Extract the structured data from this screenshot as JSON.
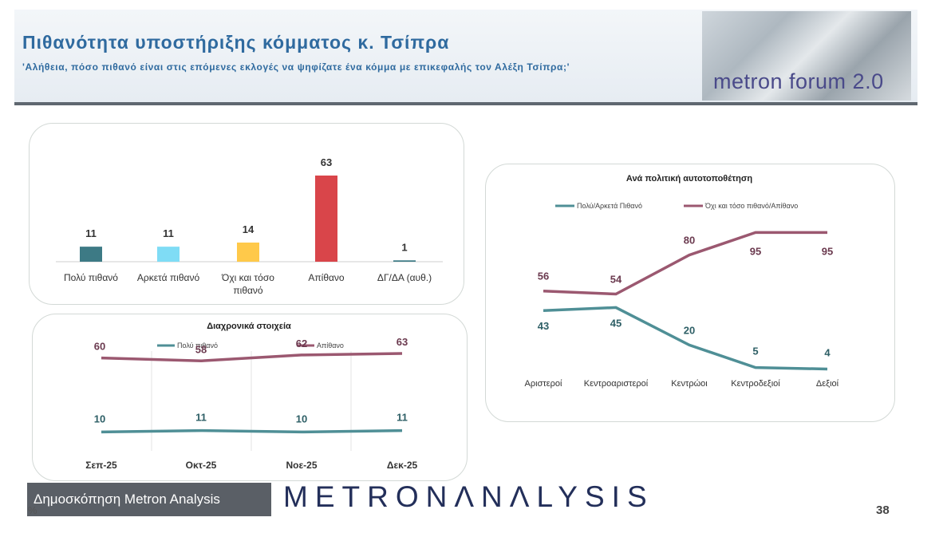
{
  "header": {
    "title": "Πιθανότητα υποστήριξης κόμματος κ. Τσίπρα",
    "subtitle": "'Αλήθεια, πόσο πιθανό είναι στις επόμενες εκλογές να ψηφίζατε ένα κόμμα με επικεφαλής τον Αλέξη Τσίπρα;'",
    "logo_text": "metron forum 2.0"
  },
  "footer": {
    "badge": "Δημοσκόπηση Metron Analysis",
    "brand": "METRONΛNΛLYSIS",
    "page_number": "38",
    "percent_sign": "%"
  },
  "colors": {
    "teal": "#3d7a85",
    "light_blue": "#7fdcf5",
    "yellow": "#ffc94a",
    "red": "#d9454a",
    "maroon": "#9b5870",
    "teal_line": "#4f8f96"
  },
  "chart_data": [
    {
      "type": "bar",
      "title": "",
      "categories": [
        "Πολύ πιθανό",
        "Αρκετά πιθανό",
        "Όχι και τόσο πιθανό",
        "Απίθανο",
        "ΔΓ/ΔΑ (αυθ.)"
      ],
      "category_lines": [
        [
          "Πολύ πιθανό"
        ],
        [
          "Αρκετά πιθανό"
        ],
        [
          "Όχι και τόσο",
          "πιθανό"
        ],
        [
          "Απίθανο"
        ],
        [
          "ΔΓ/ΔΑ (αυθ.)"
        ]
      ],
      "values": [
        11,
        11,
        14,
        63,
        1
      ],
      "bar_colors": [
        "#3d7a85",
        "#7fdcf5",
        "#ffc94a",
        "#d9454a",
        "#3d7a85"
      ],
      "ylim": [
        0,
        63
      ]
    },
    {
      "type": "line",
      "title": "Διαχρονικά στοιχεία",
      "categories": [
        "Σεπ-25",
        "Οκτ-25",
        "Νοε-25",
        "Δεκ-25"
      ],
      "series": [
        {
          "name": "Πολύ πιθανό",
          "values": [
            10,
            11,
            10,
            11
          ],
          "color": "#4f8f96"
        },
        {
          "name": "Απίθανο",
          "values": [
            60,
            58,
            62,
            63
          ],
          "color": "#9b5870"
        }
      ],
      "ylim": [
        0,
        70
      ],
      "legend": "top"
    },
    {
      "type": "line",
      "title": "Ανά πολιτική αυτοτοποθέτηση",
      "categories": [
        "Αριστεροί",
        "Κεντροαριστεροί",
        "Κεντρώοι",
        "Κεντροδεξιοί",
        "Δεξιοί"
      ],
      "series": [
        {
          "name": "Πολύ/Αρκετά Πιθανό",
          "values": [
            43,
            45,
            20,
            5,
            4
          ],
          "color": "#4f8f96"
        },
        {
          "name": "Όχι και τόσο πιθανό/Απίθανο",
          "values": [
            56,
            54,
            80,
            95,
            95
          ],
          "color": "#9b5870"
        }
      ],
      "ylim": [
        0,
        100
      ],
      "legend": "top"
    }
  ]
}
